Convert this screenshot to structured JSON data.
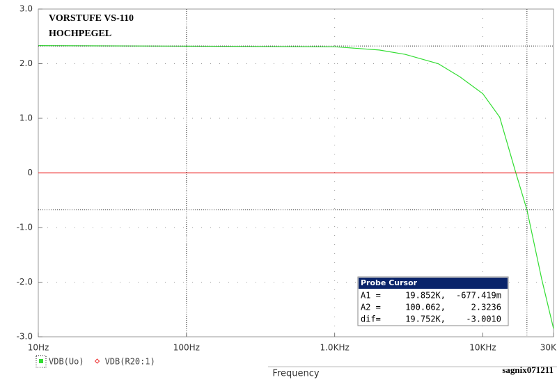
{
  "chart_data": {
    "type": "line",
    "annotations": [
      "VORSTUFE VS-110",
      "HOCHPEGEL"
    ],
    "x_label": "Frequency",
    "watermark": "sagnix071211",
    "log_x": true,
    "grid": true,
    "xlim": [
      10,
      30000
    ],
    "xticks": [
      {
        "value": 10,
        "label": "10Hz"
      },
      {
        "value": 100,
        "label": "100Hz"
      },
      {
        "value": 1000,
        "label": "1.0KHz"
      },
      {
        "value": 10000,
        "label": "10KHz"
      },
      {
        "value": 30000,
        "label": "30KHz"
      }
    ],
    "ylim": [
      -3,
      3
    ],
    "yticks": [
      {
        "value": 3,
        "label": "3.0"
      },
      {
        "value": 2,
        "label": "2.0"
      },
      {
        "value": 1,
        "label": "1.0"
      },
      0,
      {
        "value": -1,
        "label": "-1.0"
      },
      {
        "value": -2,
        "label": "-2.0"
      },
      {
        "value": -3,
        "label": "-3.0"
      }
    ],
    "x": [
      10,
      100,
      1000,
      2000,
      3000,
      5000,
      7000,
      10000,
      13000,
      16500,
      19852,
      25000,
      30000
    ],
    "series": [
      {
        "name": "VDB(Uo)",
        "color": "#33dd33",
        "values": [
          2.33,
          2.32,
          2.31,
          2.25,
          2.17,
          2.0,
          1.76,
          1.45,
          1.02,
          0.05,
          -0.677,
          -1.95,
          -2.85
        ]
      },
      {
        "name": "VDB(R20:1)",
        "color": "#ee3333",
        "values": [
          0,
          0,
          0,
          0,
          0,
          0,
          0,
          0,
          0,
          0,
          0,
          0,
          0
        ]
      }
    ],
    "cursor_title": "Probe Cursor",
    "cursors": [
      {
        "name": "A1 =",
        "x": 19852,
        "x_label": "19.852K,",
        "y": -0.677419,
        "y_label": "-677.419m"
      },
      {
        "name": "A2 =",
        "x": 100.062,
        "x_label": "100.062,",
        "y": 2.3236,
        "y_label": "2.3236"
      }
    ],
    "cursor_diff": {
      "name": "dif=",
      "x_label": "19.752K,",
      "y_label": "-3.0010"
    }
  }
}
